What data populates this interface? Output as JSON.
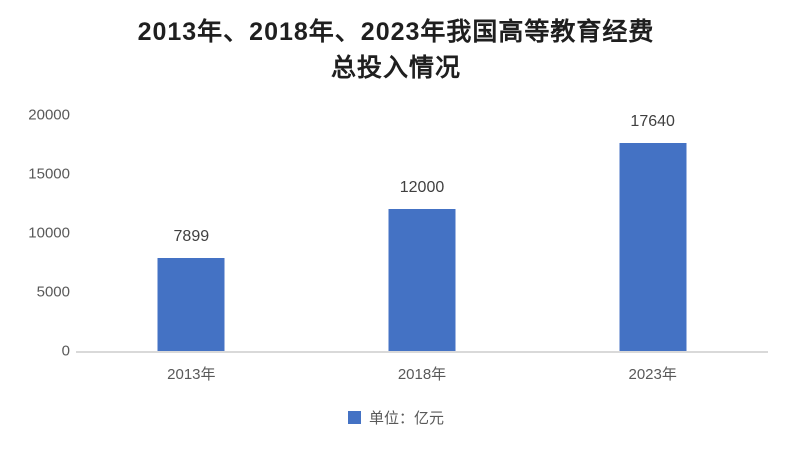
{
  "chart_data": {
    "type": "bar",
    "title": "2013年、2018年、2023年我国高等教育经费总投入情况",
    "title_line1": "2013年、2018年、2023年我国高等教育经费",
    "title_line2": "总投入情况",
    "categories": [
      "2013年",
      "2018年",
      "2023年"
    ],
    "values": [
      7899,
      12000,
      17640
    ],
    "data_labels": [
      "7899",
      "12000",
      "17640"
    ],
    "yticks": [
      0,
      5000,
      10000,
      15000,
      20000
    ],
    "ylim": [
      0,
      20000
    ],
    "xlabel": "",
    "ylabel": "",
    "grid": "off",
    "legend_position": "bottom",
    "legend_label": "单位：亿元",
    "colors": {
      "bar": "#4472c4",
      "title_text": "#1f1f1f",
      "axis_text": "#595959",
      "data_label_text": "#404040",
      "axis_line": "#d9d9d9",
      "background": "#ffffff"
    }
  }
}
